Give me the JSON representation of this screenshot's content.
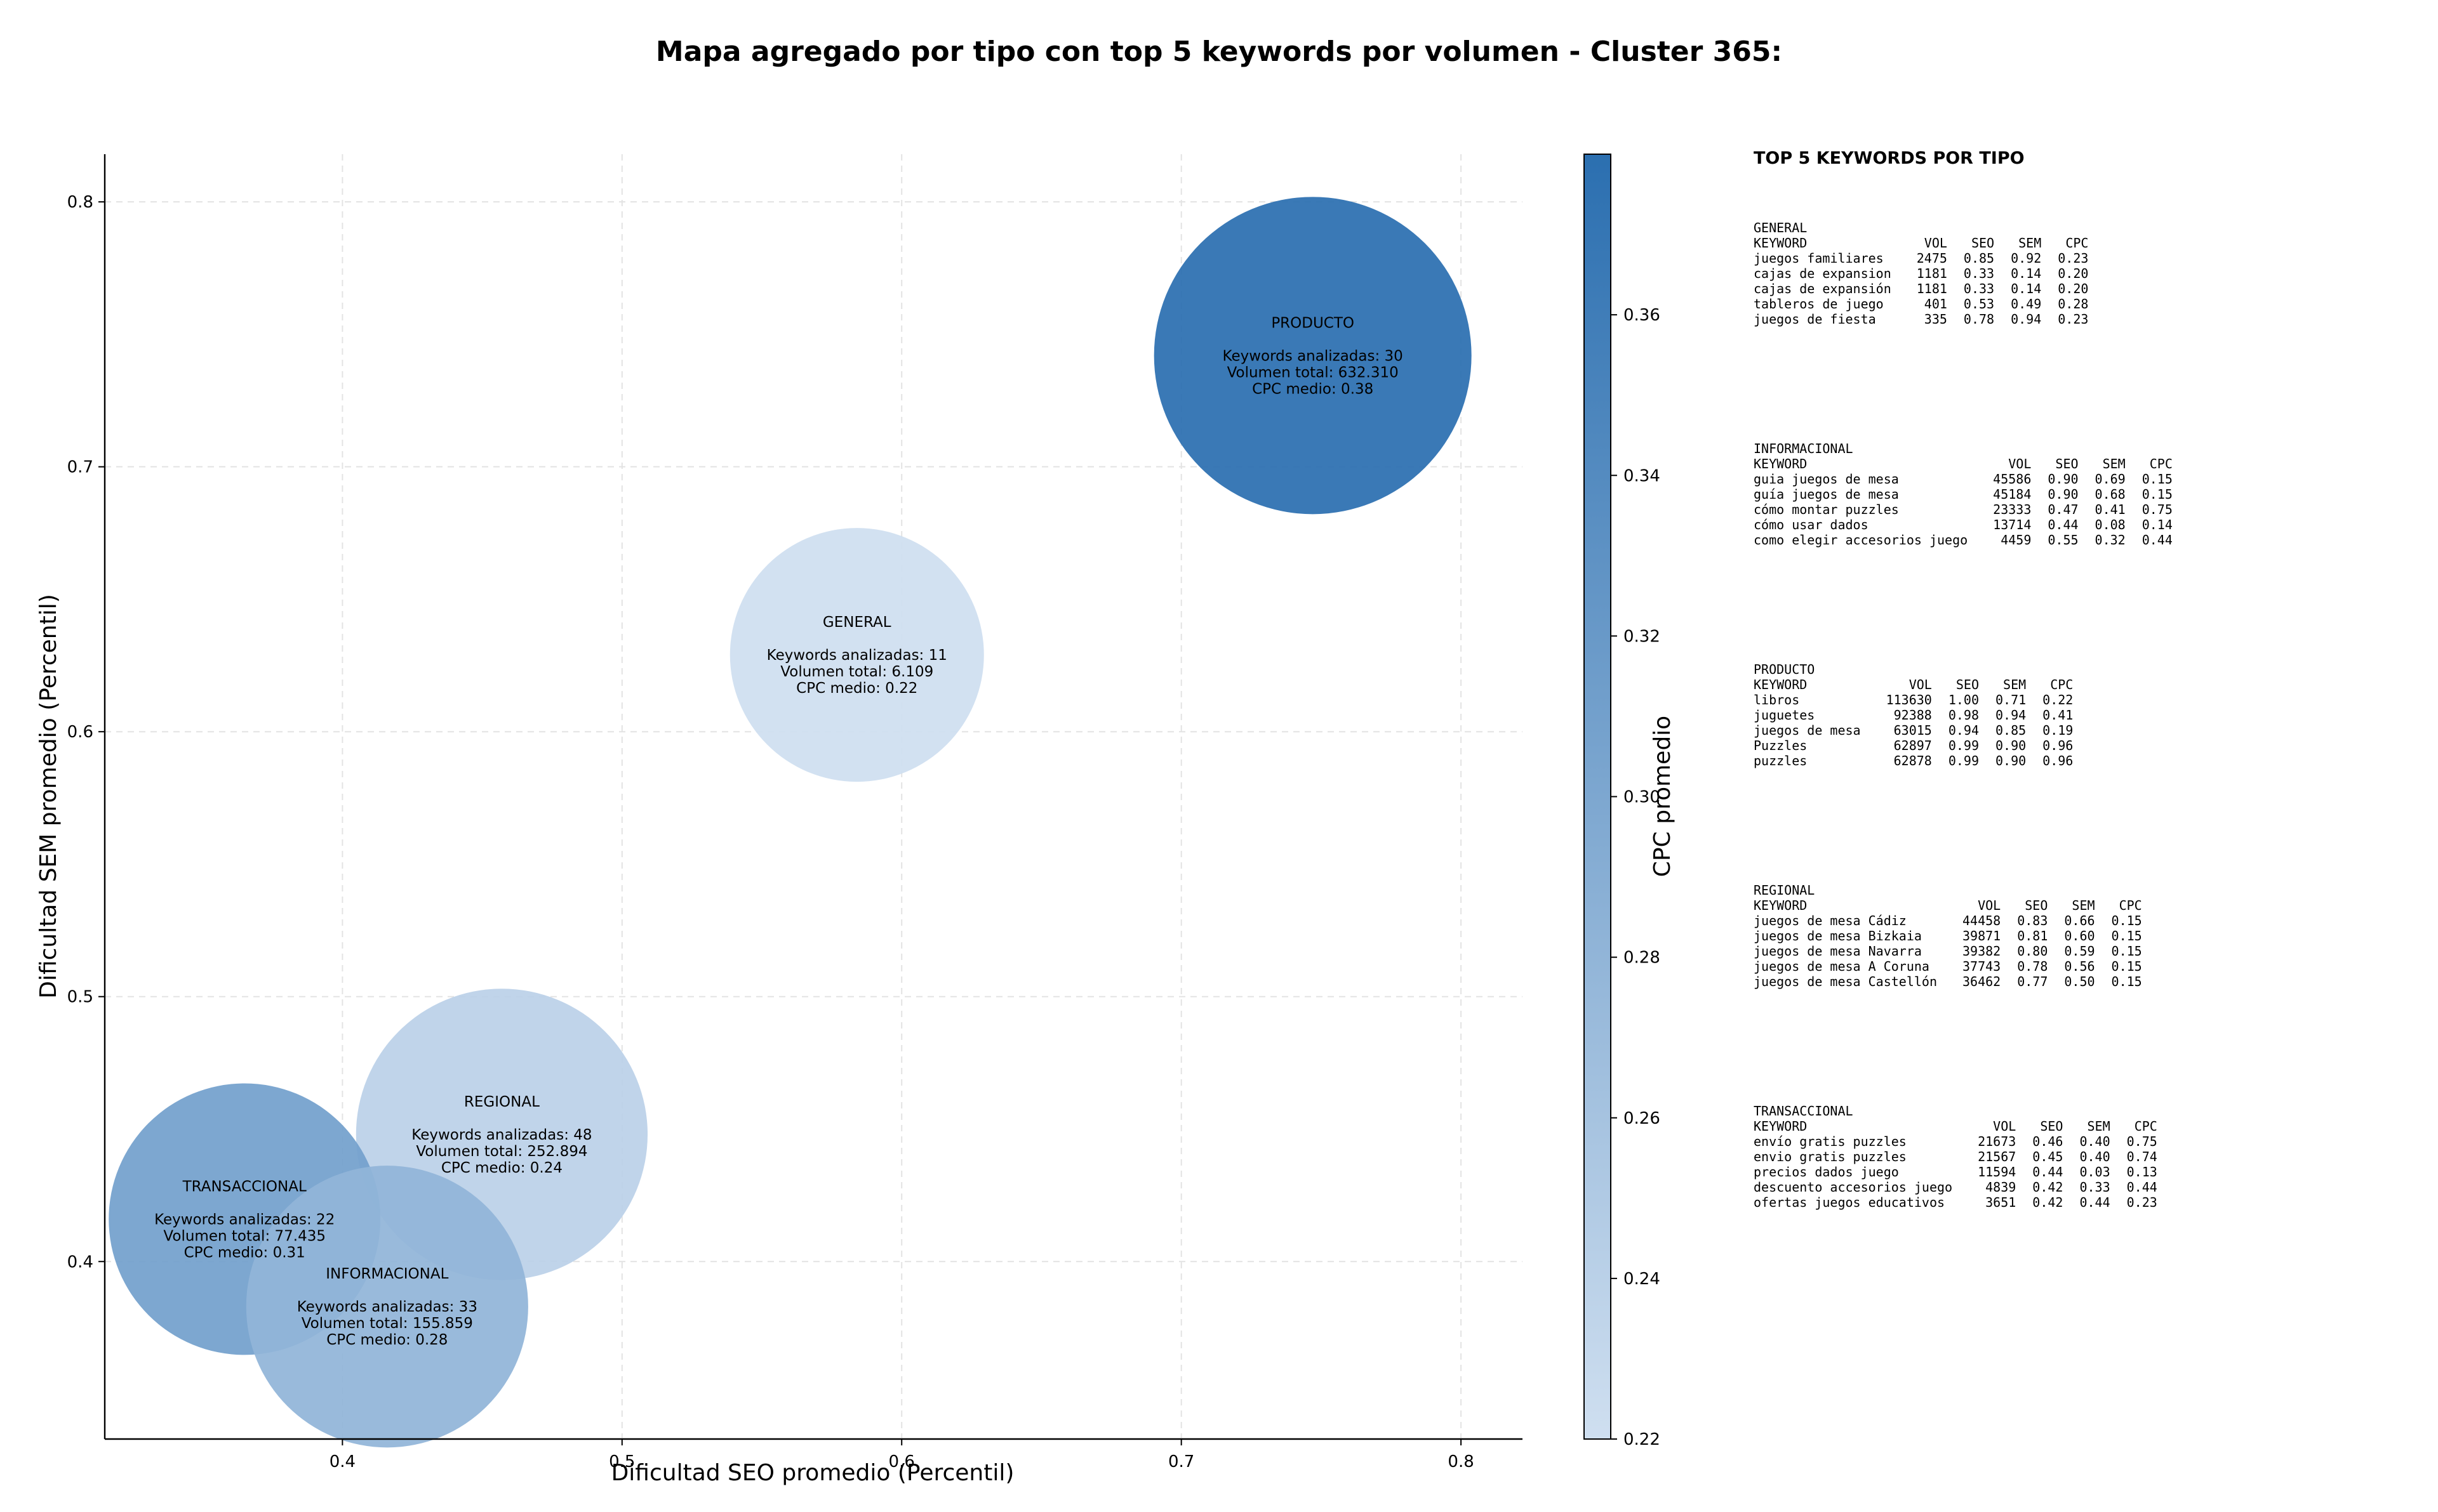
{
  "chart_data": {
    "type": "scatter",
    "title": "Mapa agregado por tipo con top 5 keywords por volumen - Cluster 365:",
    "xlabel": "Dificultad SEO promedio (Percentil)",
    "ylabel": "Dificultad SEM promedio (Percentil)",
    "xlim": [
      0.315,
      0.822
    ],
    "ylim": [
      0.333,
      0.818
    ],
    "xticks": [
      "0.4",
      "0.5",
      "0.6",
      "0.7",
      "0.8"
    ],
    "yticks": [
      "0.4",
      "0.5",
      "0.6",
      "0.7",
      "0.8"
    ],
    "grid": true,
    "colorbar": {
      "label": "CPC promedio",
      "range": [
        0.22,
        0.38
      ],
      "ticks": [
        "0.22",
        "0.24",
        "0.26",
        "0.28",
        "0.30",
        "0.32",
        "0.34",
        "0.36"
      ],
      "color_low": "#cfdff0",
      "color_high": "#2b6fb0"
    },
    "bubble_size_meaning": "Volumen total",
    "points": [
      {
        "name": "PRODUCTO",
        "x": 0.747,
        "y": 0.742,
        "volume": 632310,
        "keywords": 30,
        "cpc": 0.38,
        "lines": [
          "PRODUCTO",
          "",
          "Keywords analizadas: 30",
          "Volumen total: 632.310",
          "CPC medio: 0.38"
        ]
      },
      {
        "name": "GENERAL",
        "x": 0.584,
        "y": 0.629,
        "volume": 6109,
        "keywords": 11,
        "cpc": 0.22,
        "lines": [
          "GENERAL",
          "",
          "Keywords analizadas: 11",
          "Volumen total: 6.109",
          "CPC medio: 0.22"
        ]
      },
      {
        "name": "REGIONAL",
        "x": 0.457,
        "y": 0.448,
        "volume": 252894,
        "keywords": 48,
        "cpc": 0.24,
        "lines": [
          "REGIONAL",
          "",
          "Keywords analizadas: 48",
          "Volumen total: 252.894",
          "CPC medio: 0.24"
        ]
      },
      {
        "name": "TRANSACCIONAL",
        "x": 0.365,
        "y": 0.416,
        "volume": 77435,
        "keywords": 22,
        "cpc": 0.31,
        "lines": [
          "TRANSACCIONAL",
          "",
          "Keywords analizadas: 22",
          "Volumen total: 77.435",
          "CPC medio: 0.31"
        ]
      },
      {
        "name": "INFORMACIONAL",
        "x": 0.416,
        "y": 0.383,
        "volume": 155859,
        "keywords": 33,
        "cpc": 0.28,
        "lines": [
          "INFORMACIONAL",
          "",
          "Keywords analizadas: 33",
          "Volumen total: 155.859",
          "CPC medio: 0.28"
        ]
      }
    ]
  },
  "side_panel": {
    "title": "TOP 5 KEYWORDS POR TIPO",
    "header": [
      "KEYWORD",
      "VOL",
      "SEO",
      "SEM",
      "CPC"
    ],
    "groups": [
      {
        "name": "GENERAL",
        "rows": [
          [
            "juegos familiares",
            "2475",
            "0.85",
            "0.92",
            "0.23"
          ],
          [
            "cajas de expansion",
            "1181",
            "0.33",
            "0.14",
            "0.20"
          ],
          [
            "cajas de expansión",
            "1181",
            "0.33",
            "0.14",
            "0.20"
          ],
          [
            "tableros de juego",
            "401",
            "0.53",
            "0.49",
            "0.28"
          ],
          [
            "juegos de fiesta",
            "335",
            "0.78",
            "0.94",
            "0.23"
          ]
        ]
      },
      {
        "name": "INFORMACIONAL",
        "rows": [
          [
            "guia juegos de mesa",
            "45586",
            "0.90",
            "0.69",
            "0.15"
          ],
          [
            "guía juegos de mesa",
            "45184",
            "0.90",
            "0.68",
            "0.15"
          ],
          [
            "cómo montar puzzles",
            "23333",
            "0.47",
            "0.41",
            "0.75"
          ],
          [
            "cómo usar dados",
            "13714",
            "0.44",
            "0.08",
            "0.14"
          ],
          [
            "como elegir accesorios juego",
            "4459",
            "0.55",
            "0.32",
            "0.44"
          ]
        ]
      },
      {
        "name": "PRODUCTO",
        "rows": [
          [
            "libros",
            "113630",
            "1.00",
            "0.71",
            "0.22"
          ],
          [
            "juguetes",
            "92388",
            "0.98",
            "0.94",
            "0.41"
          ],
          [
            "juegos de mesa",
            "63015",
            "0.94",
            "0.85",
            "0.19"
          ],
          [
            "Puzzles",
            "62897",
            "0.99",
            "0.90",
            "0.96"
          ],
          [
            "puzzles",
            "62878",
            "0.99",
            "0.90",
            "0.96"
          ]
        ]
      },
      {
        "name": "REGIONAL",
        "rows": [
          [
            "juegos de mesa Cádiz",
            "44458",
            "0.83",
            "0.66",
            "0.15"
          ],
          [
            "juegos de mesa Bizkaia",
            "39871",
            "0.81",
            "0.60",
            "0.15"
          ],
          [
            "juegos de mesa Navarra",
            "39382",
            "0.80",
            "0.59",
            "0.15"
          ],
          [
            "juegos de mesa A Coruna",
            "37743",
            "0.78",
            "0.56",
            "0.15"
          ],
          [
            "juegos de mesa Castellón",
            "36462",
            "0.77",
            "0.50",
            "0.15"
          ]
        ]
      },
      {
        "name": "TRANSACCIONAL",
        "rows": [
          [
            "envío gratis puzzles",
            "21673",
            "0.46",
            "0.40",
            "0.75"
          ],
          [
            "envio gratis puzzles",
            "21567",
            "0.45",
            "0.40",
            "0.74"
          ],
          [
            "precios dados juego",
            "11594",
            "0.44",
            "0.03",
            "0.13"
          ],
          [
            "descuento accesorios juego",
            "4839",
            "0.42",
            "0.33",
            "0.44"
          ],
          [
            "ofertas juegos educativos",
            "3651",
            "0.42",
            "0.44",
            "0.23"
          ]
        ]
      }
    ]
  }
}
